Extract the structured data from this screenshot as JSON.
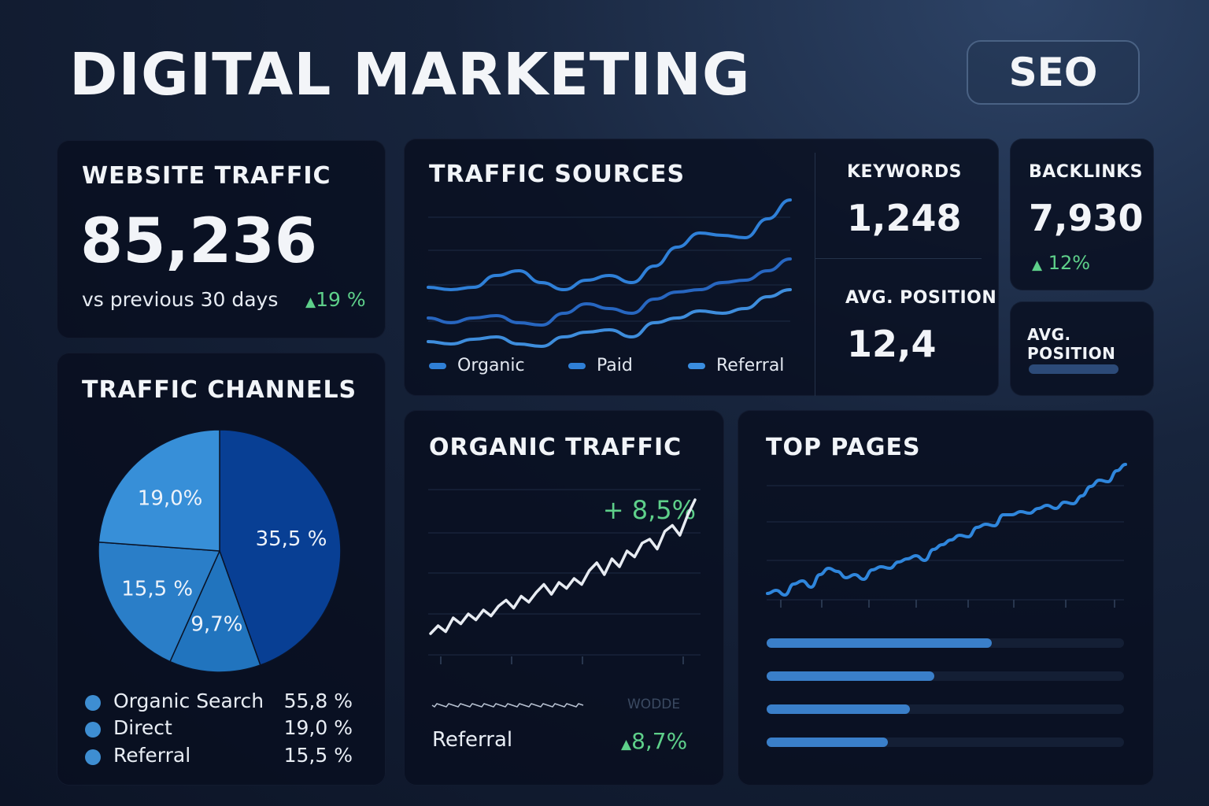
{
  "header": {
    "title": "DIGITAL MARKETING",
    "badge": "SEO"
  },
  "website_traffic": {
    "title": "WEBSITE TRAFFIC",
    "value": "85,236",
    "caption": "vs previous 30 days",
    "change": "19 %"
  },
  "traffic_sources": {
    "title": "TRAFFIC SOURCES",
    "legend": [
      "Organic",
      "Paid",
      "Referral"
    ]
  },
  "keywords": {
    "title": "KEYWORDS",
    "value": "1,248",
    "pos_title": "AVG. POSITION",
    "pos_value": "12,4"
  },
  "backlinks": {
    "title": "BACKLINKS",
    "value": "7,930",
    "change": "12%"
  },
  "avg_position_card": {
    "title": "AVG. POSITION",
    "level": 0.6
  },
  "traffic_channels": {
    "title": "TRAFFIC CHANNELS",
    "rows": [
      {
        "name": "Organic Search",
        "pct": "55,8 %"
      },
      {
        "name": "Direct",
        "pct": "19,0 %"
      },
      {
        "name": "Referral",
        "pct": "15,5 %"
      }
    ]
  },
  "organic_traffic": {
    "title": "ORGANIC TRAFFIC",
    "change": "+ 8,5%",
    "faint_label": "WODDE",
    "referral_label": "Referral",
    "referral_change": "8,7%"
  },
  "top_pages": {
    "title": "TOP PAGES",
    "bars": [
      0.63,
      0.47,
      0.4,
      0.34
    ]
  },
  "colors": {
    "accent": "#3a7fc9",
    "positive": "#5ed08a",
    "pie_dark": "#0a3d91",
    "pie_light": "#2f8bd6"
  },
  "chart_data": [
    {
      "type": "line",
      "name": "traffic-sources",
      "x": [
        0,
        1,
        2,
        3,
        4,
        5,
        6,
        7,
        8,
        9,
        10,
        11,
        12,
        13,
        14,
        15,
        16
      ],
      "series": [
        {
          "name": "Organic",
          "values": [
            35,
            34,
            35,
            40,
            42,
            37,
            34,
            38,
            40,
            37,
            44,
            52,
            58,
            57,
            56,
            64,
            72
          ]
        },
        {
          "name": "Paid",
          "values": [
            22,
            20,
            22,
            23,
            20,
            19,
            24,
            28,
            26,
            24,
            30,
            33,
            34,
            37,
            38,
            42,
            47
          ]
        },
        {
          "name": "Referral",
          "values": [
            12,
            11,
            13,
            14,
            11,
            10,
            14,
            16,
            17,
            14,
            20,
            22,
            25,
            24,
            26,
            31,
            34
          ]
        }
      ],
      "ylim": [
        0,
        80
      ]
    },
    {
      "type": "pie",
      "name": "traffic-channels",
      "labels": [
        "35,5 %",
        "9,7%",
        "15,5 %",
        "19,0%"
      ],
      "values": [
        35.5,
        9.7,
        15.5,
        19.0
      ]
    },
    {
      "type": "line",
      "name": "organic-traffic",
      "x": [
        0,
        1,
        2,
        3,
        4,
        5,
        6,
        7,
        8,
        9,
        10,
        11,
        12,
        13,
        14,
        15,
        16,
        17,
        18,
        19,
        20,
        21,
        22,
        23,
        24,
        25,
        26,
        27,
        28,
        29,
        30,
        31,
        32,
        33,
        34,
        35
      ],
      "values": [
        10,
        14,
        11,
        18,
        15,
        20,
        17,
        22,
        19,
        24,
        27,
        23,
        29,
        26,
        31,
        35,
        30,
        36,
        33,
        38,
        35,
        42,
        46,
        40,
        48,
        44,
        52,
        49,
        56,
        58,
        53,
        62,
        65,
        60,
        70,
        78
      ],
      "ylim": [
        0,
        100
      ]
    },
    {
      "type": "line",
      "name": "top-pages",
      "x": [
        0,
        1,
        2,
        3,
        4,
        5,
        6,
        7,
        8,
        9,
        10,
        11,
        12,
        13,
        14,
        15,
        16,
        17,
        18,
        19,
        20,
        21,
        22,
        23,
        24,
        25,
        26,
        27,
        28,
        29,
        30,
        31,
        32,
        33,
        34,
        35,
        36,
        37,
        38,
        39,
        40,
        41
      ],
      "values": [
        18,
        20,
        17,
        24,
        26,
        22,
        30,
        34,
        32,
        28,
        30,
        27,
        33,
        35,
        34,
        38,
        40,
        42,
        39,
        46,
        49,
        52,
        55,
        54,
        60,
        62,
        61,
        68,
        68,
        70,
        69,
        72,
        74,
        72,
        76,
        75,
        80,
        86,
        90,
        89,
        96,
        100
      ],
      "ylim": [
        0,
        110
      ]
    }
  ]
}
